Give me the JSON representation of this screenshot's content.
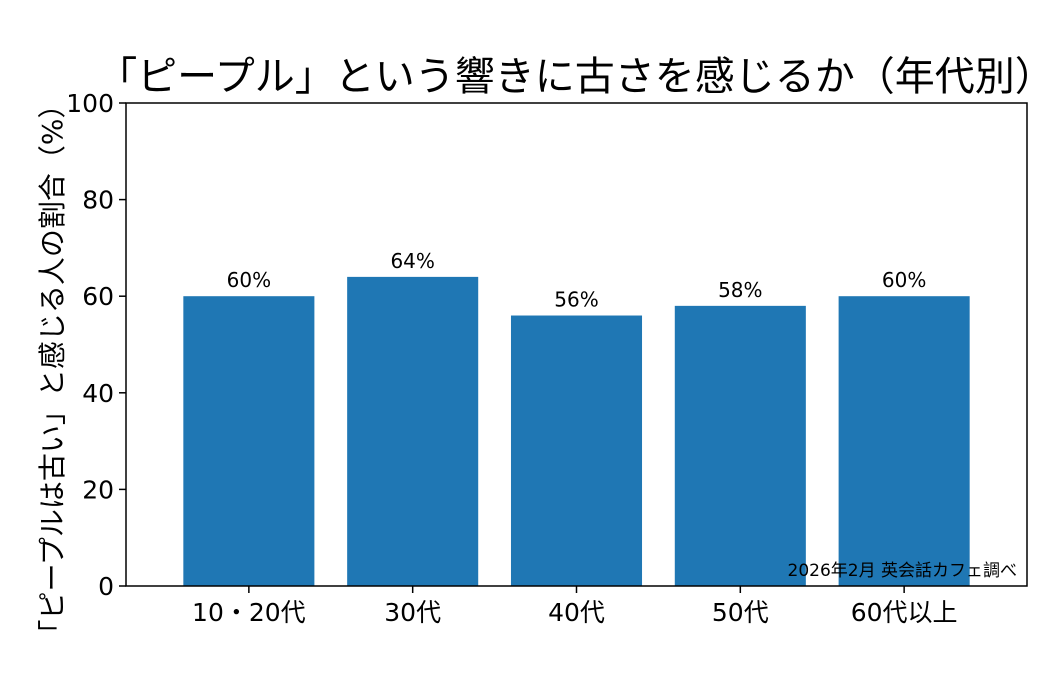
{
  "chart_data": {
    "type": "bar",
    "title": "「ピープル」という響きに古さを感じるか（年代別）",
    "xlabel": "",
    "ylabel": "「ピープルは古い」と感じる人の割合（%）",
    "categories": [
      "10・20代",
      "30代",
      "40代",
      "50代",
      "60代以上"
    ],
    "values": [
      60,
      64,
      56,
      58,
      60
    ],
    "data_labels": [
      "60%",
      "64%",
      "56%",
      "58%",
      "60%"
    ],
    "ylim": [
      0,
      100
    ],
    "yticks": [
      0,
      20,
      40,
      60,
      80,
      100
    ],
    "grid": false,
    "annotation": "2026年2月 英会話カフェ調べ",
    "bar_color": "#1f77b4"
  }
}
